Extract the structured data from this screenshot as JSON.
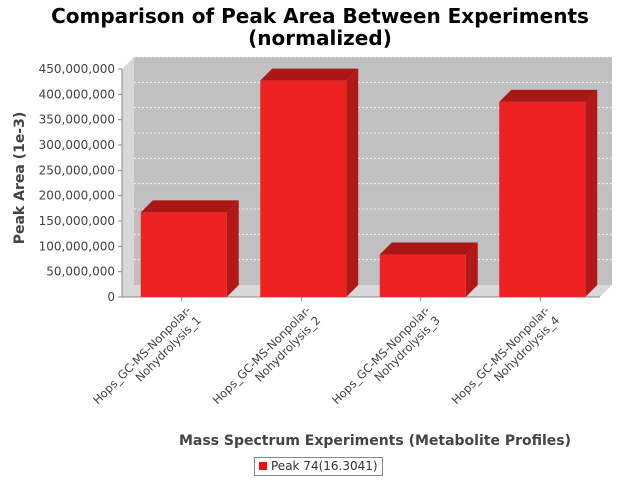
{
  "chart_data": {
    "type": "bar",
    "title_lines": [
      "Comparison of Peak Area Between Experiments",
      "(normalized)"
    ],
    "xlabel": "Mass Spectrum Experiments (Metabolite Profiles)",
    "ylabel": "Peak Area (1e-3)",
    "categories": [
      [
        "Hops_GC-MS-Nonpolar-",
        "Nohydrolysis_1"
      ],
      [
        "Hops_GC-MS-Nonpolar-",
        "Nohydrolysis_2"
      ],
      [
        "Hops_GC-MS-Nonpolar-",
        "Nohydrolysis_3"
      ],
      [
        "Hops_GC-MS-Nonpolar-",
        "Nohydrolysis_4"
      ]
    ],
    "series": [
      {
        "name": "Peak 74(16.3041)",
        "values": [
          167000000,
          427000000,
          84000000,
          385000000
        ]
      }
    ],
    "ylim": [
      0,
      450000000
    ],
    "yticks": [
      0,
      50000000,
      100000000,
      150000000,
      200000000,
      250000000,
      300000000,
      350000000,
      400000000,
      450000000
    ],
    "ytick_labels": [
      "0",
      "50,000,000",
      "100,000,000",
      "150,000,000",
      "200,000,000",
      "250,000,000",
      "300,000,000",
      "350,000,000",
      "400,000,000",
      "450,000,000"
    ],
    "grid": true,
    "legend_placement": "bottom",
    "colors": {
      "bar_front": "#ee2222",
      "bar_top": "#aa1515",
      "bar_side": "#b31818",
      "plot_bg": "#c0c0c0",
      "plot_wall": "#d8d8d8"
    }
  }
}
